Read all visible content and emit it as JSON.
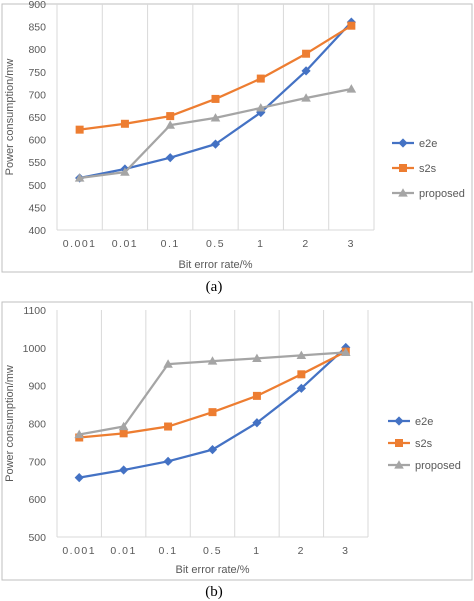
{
  "chart_data": [
    {
      "type": "line",
      "caption": "(a)",
      "xlabel": "Bit error rate/%",
      "ylabel": "Power consumption/mw",
      "categories": [
        "0.001",
        "0.01",
        "0.1",
        "0.5",
        "1",
        "2",
        "3"
      ],
      "ylim": [
        400,
        900
      ],
      "yticks": [
        400,
        450,
        500,
        550,
        600,
        650,
        700,
        750,
        800,
        850,
        900
      ],
      "grid": "vertical",
      "legend_position": "right",
      "series": [
        {
          "name": "e2e",
          "color": "#4472C4",
          "marker": "diamond",
          "values": [
            515,
            535,
            560,
            590,
            660,
            752,
            860
          ]
        },
        {
          "name": "s2s",
          "color": "#ED7D31",
          "marker": "square",
          "values": [
            622,
            635,
            652,
            690,
            735,
            790,
            852
          ]
        },
        {
          "name": "proposed",
          "color": "#A5A5A5",
          "marker": "triangle",
          "values": [
            515,
            528,
            632,
            648,
            670,
            692,
            712
          ]
        }
      ]
    },
    {
      "type": "line",
      "caption": "(b)",
      "xlabel": "Bit error rate/%",
      "ylabel": "Power consumption/mw",
      "categories": [
        "0.001",
        "0.01",
        "0.1",
        "0.5",
        "1",
        "2",
        "3"
      ],
      "ylim": [
        500,
        1100
      ],
      "yticks": [
        500,
        600,
        700,
        800,
        900,
        1000,
        1100
      ],
      "grid": "vertical",
      "legend_position": "right",
      "series": [
        {
          "name": "e2e",
          "color": "#4472C4",
          "marker": "diamond",
          "values": [
            657,
            677,
            700,
            731,
            802,
            893,
            1001
          ]
        },
        {
          "name": "s2s",
          "color": "#ED7D31",
          "marker": "square",
          "values": [
            763,
            774,
            792,
            830,
            873,
            930,
            990
          ]
        },
        {
          "name": "proposed",
          "color": "#A5A5A5",
          "marker": "triangle",
          "values": [
            771,
            792,
            957,
            965,
            972,
            980,
            988
          ]
        }
      ]
    }
  ]
}
